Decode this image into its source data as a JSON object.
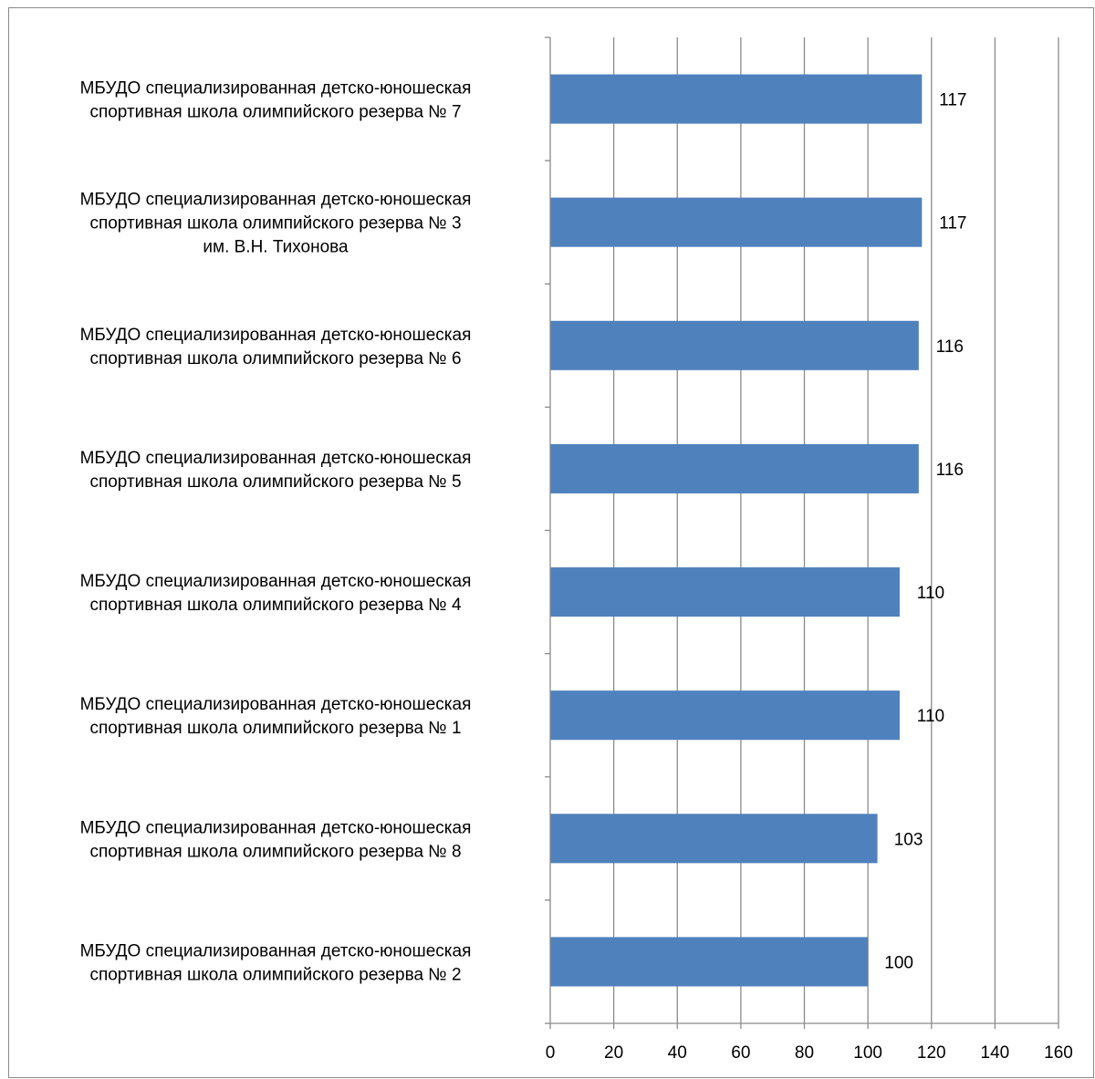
{
  "chart_data": {
    "type": "bar",
    "orientation": "horizontal",
    "categories": [
      [
        "МБУДО специализированная детско-юношеская",
        "спортивная школа олимпийского резерва № 7"
      ],
      [
        "МБУДО специализированная детско-юношеская",
        "спортивная школа олимпийского резерва № 3",
        "им. В.Н. Тихонова"
      ],
      [
        "МБУДО специализированная детско-юношеская",
        "спортивная школа олимпийского резерва № 6"
      ],
      [
        "МБУДО специализированная детско-юношеская",
        "спортивная школа олимпийского резерва № 5"
      ],
      [
        "МБУДО специализированная детско-юношеская",
        "спортивная школа олимпийского резерва № 4"
      ],
      [
        "МБУДО специализированная детско-юношеская",
        "спортивная школа олимпийского резерва № 1"
      ],
      [
        "МБУДО специализированная детско-юношеская",
        "спортивная школа олимпийского резерва № 8"
      ],
      [
        "МБУДО специализированная детско-юношеская",
        "спортивная школа олимпийского резерва № 2"
      ]
    ],
    "values": [
      117,
      117,
      116,
      116,
      110,
      110,
      103,
      100
    ],
    "data_labels": [
      "117",
      "117",
      "116",
      "116",
      "110",
      "110",
      "103",
      "100"
    ],
    "xlim": [
      0,
      160
    ],
    "xticks": [
      0,
      20,
      40,
      60,
      80,
      100,
      120,
      140,
      160
    ],
    "grid": "vertical",
    "legend": "none",
    "title": "",
    "xlabel": "",
    "ylabel": "",
    "colors": {
      "bar": "#4f81bd",
      "grid": "#8a8a8a",
      "axis": "#8a8a8a",
      "text": "#000000"
    }
  }
}
